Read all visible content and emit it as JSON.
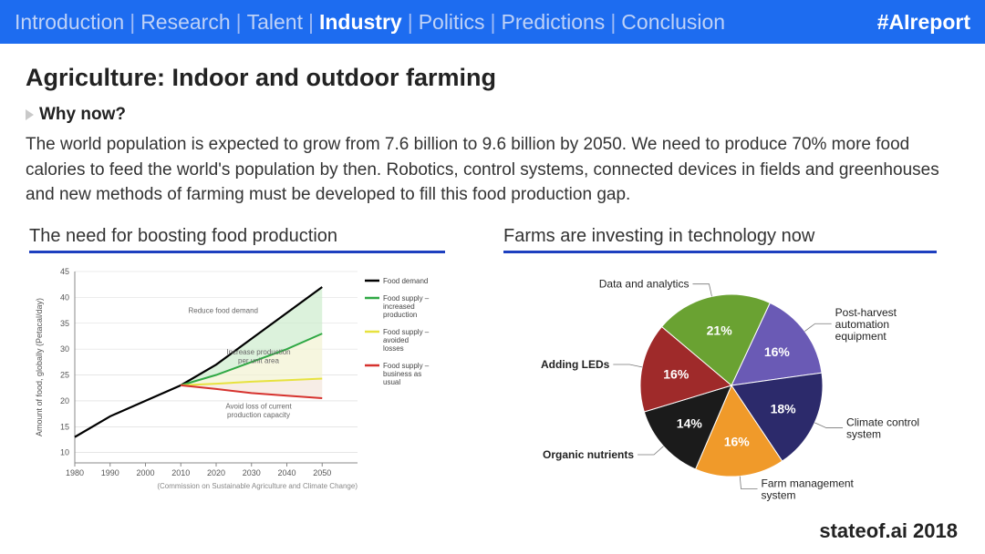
{
  "topbar": {
    "items": [
      "Introduction",
      "Research",
      "Talent",
      "Industry",
      "Politics",
      "Predictions",
      "Conclusion"
    ],
    "active_index": 3,
    "separator": "|",
    "hashtag": "#AIreport",
    "bg_color": "#1d6cf0",
    "inactive_color": "#bfd2f7",
    "active_color": "#ffffff"
  },
  "page": {
    "title": "Agriculture: Indoor and outdoor farming",
    "subhead": "Why now?",
    "body": "The world population is expected to grow from 7.6 billion to 9.6 billion by 2050. We need to produce 70% more food calories to feed the world's population by then. Robotics, control systems, connected devices in fields and greenhouses and new methods of farming must be developed to fill this food production gap.",
    "footer": "stateof.ai 2018"
  },
  "line_chart": {
    "title": "The need for boosting food production",
    "type": "line",
    "x_label_years": [
      "1980",
      "1990",
      "2000",
      "2010",
      "2020",
      "2030",
      "2040",
      "2050"
    ],
    "x_values": [
      1980,
      1990,
      2000,
      2010,
      2020,
      2030,
      2040,
      2050
    ],
    "y_label": "Amount of food, globally (Petacal/day)",
    "y_ticks": [
      10,
      15,
      20,
      25,
      30,
      35,
      40,
      45
    ],
    "ylim": [
      8,
      45
    ],
    "xlim": [
      1980,
      2060
    ],
    "series": {
      "demand": {
        "color": "#000000",
        "values": [
          13,
          17,
          20,
          23,
          27,
          32,
          37,
          42
        ]
      },
      "increased": {
        "color": "#2fa844",
        "values_from_2010": [
          23,
          25,
          27.5,
          30,
          33
        ]
      },
      "avoided": {
        "color": "#e7e23f",
        "values_from_2010": [
          23,
          23.3,
          23.7,
          24,
          24.3
        ]
      },
      "business": {
        "color": "#d6322e",
        "values_from_2010": [
          23,
          22.3,
          21.5,
          21,
          20.5
        ]
      }
    },
    "fills": {
      "top_fill": "#cdeccd",
      "mid_fill": "#f2f2d2",
      "bot_fill": "#f3e5dc"
    },
    "legend": [
      {
        "color": "#000000",
        "label": "Food demand"
      },
      {
        "color": "#2fa844",
        "label": "Food supply – increased production"
      },
      {
        "color": "#e7e23f",
        "label": "Food supply – avoided losses"
      },
      {
        "color": "#d6322e",
        "label": "Food supply – business as usual"
      }
    ],
    "annotations": {
      "reduce": "Reduce food demand",
      "increase": "Increase production per unit area",
      "avoid": "Avoid loss of current production capacity"
    },
    "caption": "(Commission on Sustainable Agriculture and Climate Change)",
    "grid_color": "#d8d8d8",
    "axis_color": "#888888"
  },
  "pie_chart": {
    "title": "Farms are investing in technology now",
    "type": "pie",
    "radius": 100,
    "slices": [
      {
        "label": "Post-harvest automation equipment",
        "pct": 16,
        "color": "#6a5ab5",
        "label_side": "right",
        "bold": false
      },
      {
        "label": "Climate control system",
        "pct": 18,
        "color": "#2c2a6b",
        "label_side": "right",
        "bold": false
      },
      {
        "label": "Farm management system",
        "pct": 16,
        "color": "#f09a2a",
        "label_side": "right",
        "bold": false
      },
      {
        "label": "Organic nutrients",
        "pct": 14,
        "color": "#1b1b1b",
        "label_side": "left",
        "bold": true
      },
      {
        "label": "Adding LEDs",
        "pct": 16,
        "color": "#9f2a2a",
        "label_side": "left",
        "bold": true
      },
      {
        "label": "Data and analytics",
        "pct": 21,
        "color": "#6aa232",
        "label_side": "left",
        "bold": false
      }
    ]
  }
}
